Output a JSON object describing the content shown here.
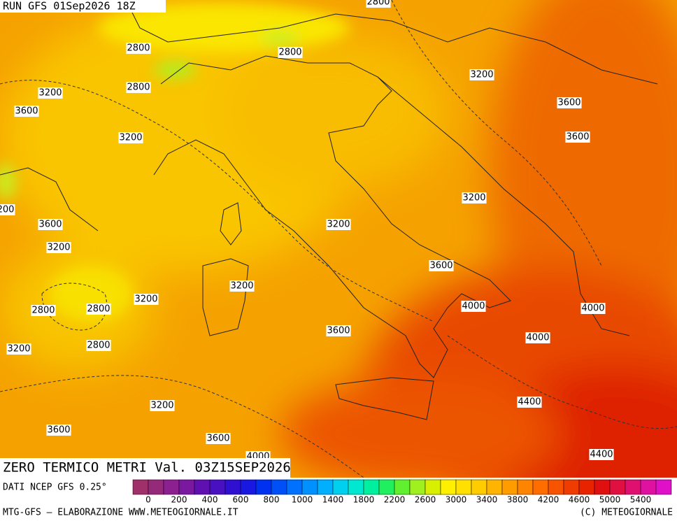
{
  "header": {
    "run": "RUN GFS 01Sep2026 18Z"
  },
  "map": {
    "title": "ZERO TERMICO METRI Val. 03Z15SEP2026",
    "contour_labels": [
      "2800",
      "2800",
      "2800",
      "2800",
      "3200",
      "3200",
      "3600",
      "3600",
      "3200",
      "3600",
      "3200",
      "200",
      "3600",
      "3200",
      "3200",
      "3600",
      "3200",
      "3200",
      "2800",
      "2800",
      "4000",
      "4000",
      "3600",
      "4000",
      "3200",
      "2800",
      "4400",
      "3200",
      "3600",
      "3600",
      "4000",
      "4400"
    ]
  },
  "legend": {
    "source": "DATI NCEP GFS 0.25°",
    "colors": [
      "#a0306a",
      "#962a7a",
      "#8c2090",
      "#7a18a0",
      "#6010b0",
      "#4810c0",
      "#3010d0",
      "#1818e0",
      "#0030f0",
      "#0050f8",
      "#0070ff",
      "#0090ff",
      "#00b0ff",
      "#00d0f0",
      "#00e8d0",
      "#00f0a0",
      "#20f060",
      "#60f030",
      "#a0f020",
      "#d8f000",
      "#fff000",
      "#ffe000",
      "#ffcc00",
      "#ffb400",
      "#ff9c00",
      "#ff8400",
      "#ff6c00",
      "#f85400",
      "#f03c00",
      "#e82400",
      "#e01010",
      "#e01040",
      "#e01070",
      "#e010a0",
      "#e010c8"
    ],
    "ticks": [
      0,
      200,
      400,
      600,
      800,
      1000,
      1400,
      1800,
      2200,
      2600,
      3000,
      3400,
      3800,
      4200,
      4600,
      5000,
      5400
    ]
  },
  "footer": {
    "left": "MTG-GFS — ELABORAZIONE WWW.METEOGIORNALE.IT",
    "right": "(C) METEOGIORNALE"
  }
}
